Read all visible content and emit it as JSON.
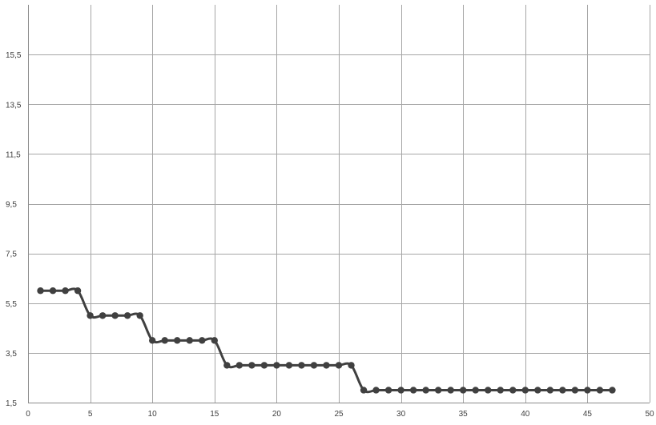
{
  "chart_data": {
    "type": "line",
    "title": "",
    "xlabel": "",
    "ylabel": "",
    "xlim": [
      0,
      50
    ],
    "ylim": [
      1.5,
      17.5
    ],
    "x_ticks": [
      0,
      5,
      10,
      15,
      20,
      25,
      30,
      35,
      40,
      45,
      50
    ],
    "x_tick_labels": [
      "0",
      "5",
      "10",
      "15",
      "20",
      "25",
      "30",
      "35",
      "40",
      "45",
      "50"
    ],
    "y_ticks": [
      1.5,
      3.5,
      5.5,
      7.5,
      9.5,
      11.5,
      13.5,
      15.5
    ],
    "y_tick_labels": [
      "1,5",
      "3,5",
      "5,5",
      "7,5",
      "9,5",
      "11,5",
      "13,5",
      "15,5"
    ],
    "grid": true,
    "legend": "none",
    "series": [
      {
        "color": "#404040",
        "marker": "circle",
        "smooth": true,
        "points": [
          [
            1,
            6
          ],
          [
            2,
            6
          ],
          [
            3,
            6
          ],
          [
            4,
            6
          ],
          [
            5,
            5
          ],
          [
            6,
            5
          ],
          [
            7,
            5
          ],
          [
            8,
            5
          ],
          [
            9,
            5
          ],
          [
            10,
            4
          ],
          [
            11,
            4
          ],
          [
            12,
            4
          ],
          [
            13,
            4
          ],
          [
            14,
            4
          ],
          [
            15,
            4
          ],
          [
            16,
            3
          ],
          [
            17,
            3
          ],
          [
            18,
            3
          ],
          [
            19,
            3
          ],
          [
            20,
            3
          ],
          [
            21,
            3
          ],
          [
            22,
            3
          ],
          [
            23,
            3
          ],
          [
            24,
            3
          ],
          [
            25,
            3
          ],
          [
            26,
            3
          ],
          [
            27,
            2
          ],
          [
            28,
            2
          ],
          [
            29,
            2
          ],
          [
            30,
            2
          ],
          [
            31,
            2
          ],
          [
            32,
            2
          ],
          [
            33,
            2
          ],
          [
            34,
            2
          ],
          [
            35,
            2
          ],
          [
            36,
            2
          ],
          [
            37,
            2
          ],
          [
            38,
            2
          ],
          [
            39,
            2
          ],
          [
            40,
            2
          ],
          [
            41,
            2
          ],
          [
            42,
            2
          ],
          [
            43,
            2
          ],
          [
            44,
            2
          ],
          [
            45,
            2
          ],
          [
            46,
            2
          ],
          [
            47,
            2
          ]
        ]
      }
    ]
  }
}
